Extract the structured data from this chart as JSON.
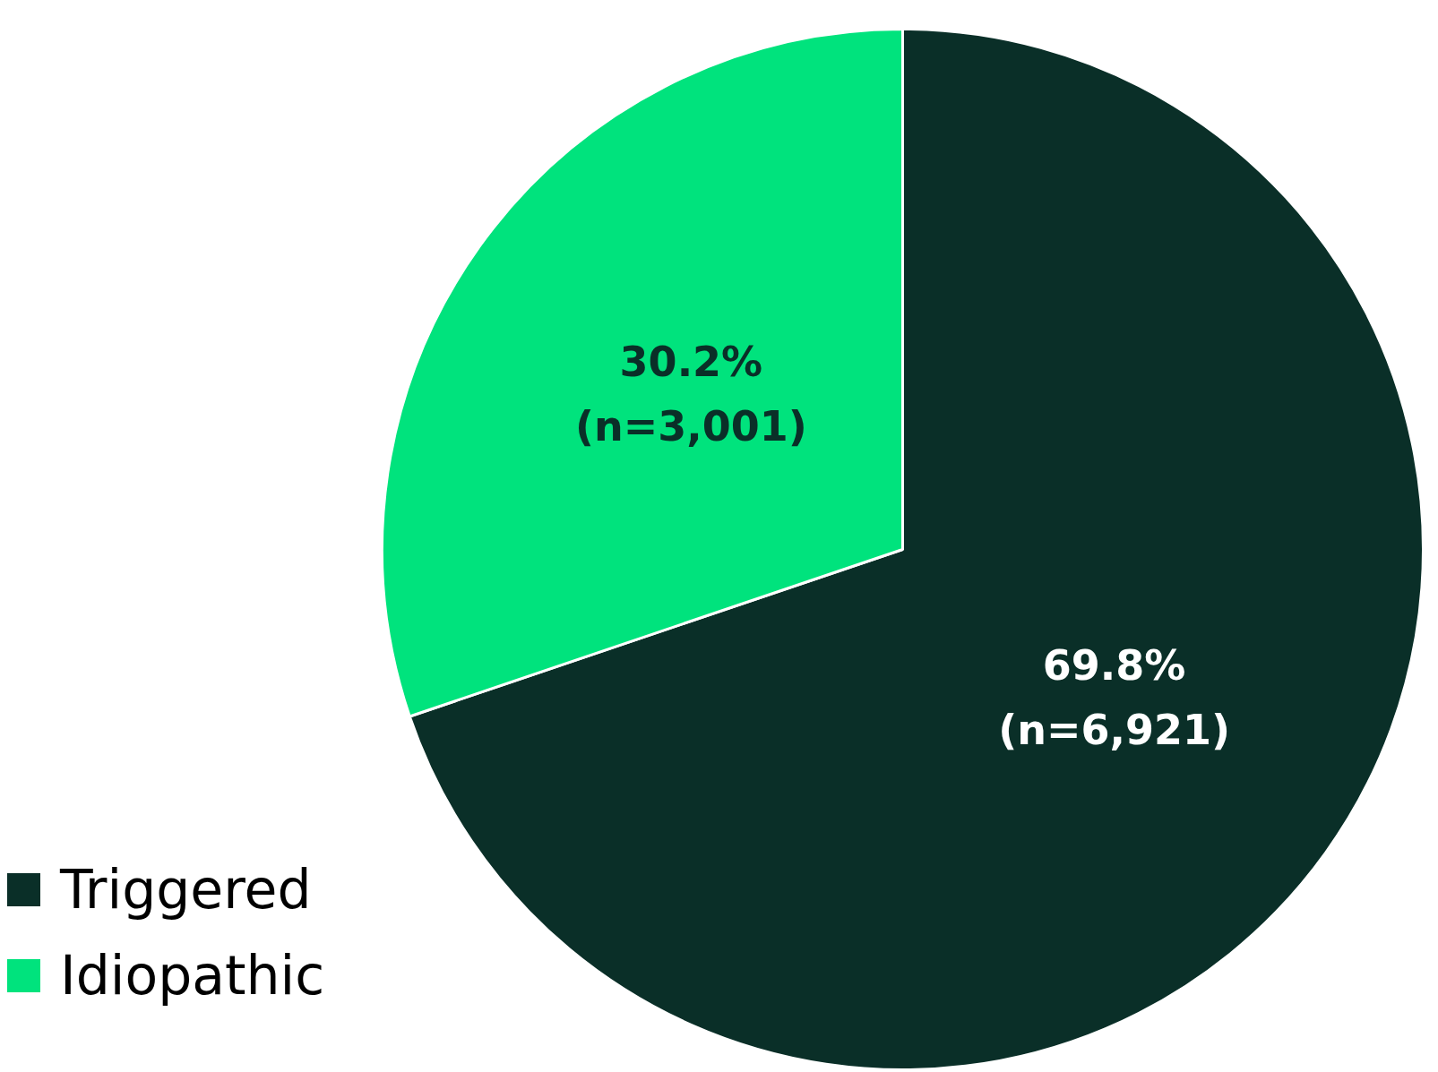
{
  "chart_data": {
    "type": "pie",
    "categories": [
      "Triggered",
      "Idiopathic"
    ],
    "values": [
      69.8,
      30.2
    ],
    "colors": [
      "#0a2f28",
      "#00e37d"
    ],
    "value_labels": [
      "69.8%\n(n=6,921)",
      "30.2%\n(n=3,001)"
    ],
    "legend": "bottom left"
  }
}
